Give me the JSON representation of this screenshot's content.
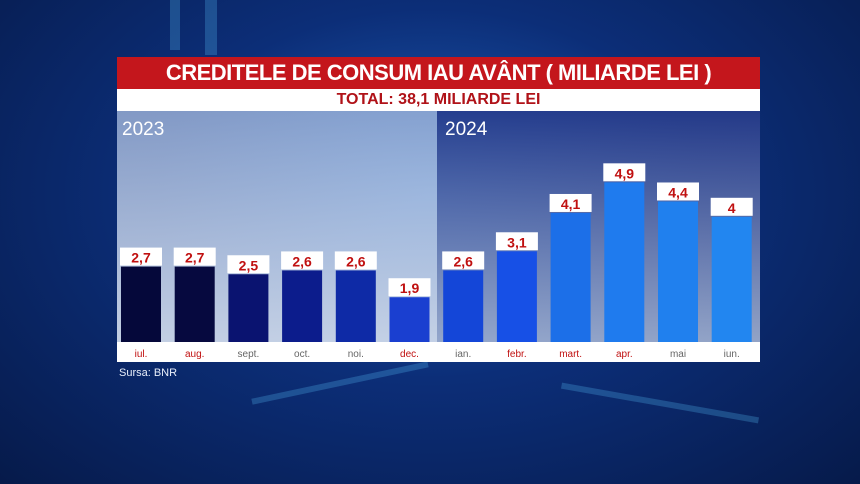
{
  "chart_data": {
    "type": "bar",
    "title": "CREDITELE DE CONSUM IAU AVÂNT ( MILIARDE LEI )",
    "subtitle": "TOTAL: 38,1 MILIARDE LEI",
    "groups": [
      {
        "label": "2023",
        "categories": [
          "iul.",
          "aug.",
          "sept.",
          "oct.",
          "noi.",
          "dec."
        ]
      },
      {
        "label": "2024",
        "categories": [
          "ian.",
          "febr.",
          "mart.",
          "apr.",
          "mai",
          "iun."
        ]
      }
    ],
    "categories": [
      "iul.",
      "aug.",
      "sept.",
      "oct.",
      "noi.",
      "dec.",
      "ian.",
      "febr.",
      "mart.",
      "apr.",
      "mai",
      "iun."
    ],
    "values": [
      2.7,
      2.7,
      2.5,
      2.6,
      2.6,
      1.9,
      2.6,
      3.1,
      4.1,
      4.9,
      4.4,
      4
    ],
    "value_labels": [
      "2,7",
      "2,7",
      "2,5",
      "2,6",
      "2,6",
      "1,9",
      "2,6",
      "3,1",
      "4,1",
      "4,9",
      "4,4",
      "4"
    ],
    "bar_colors": [
      "#05083a",
      "#06093f",
      "#0a1370",
      "#0c1c8c",
      "#0e2aa6",
      "#1a3fd0",
      "#1446d8",
      "#1750e6",
      "#1c6fe8",
      "#1f7bee",
      "#2080ee",
      "#2286f0"
    ],
    "label_colors": [
      "#c01010",
      "#c01010",
      "#666666",
      "#666666",
      "#666666",
      "#c01010",
      "#666666",
      "#c01010",
      "#c01010",
      "#c01010",
      "#666666",
      "#666666"
    ],
    "value_label_color": "#c01010",
    "source": "Sursa: BNR"
  }
}
